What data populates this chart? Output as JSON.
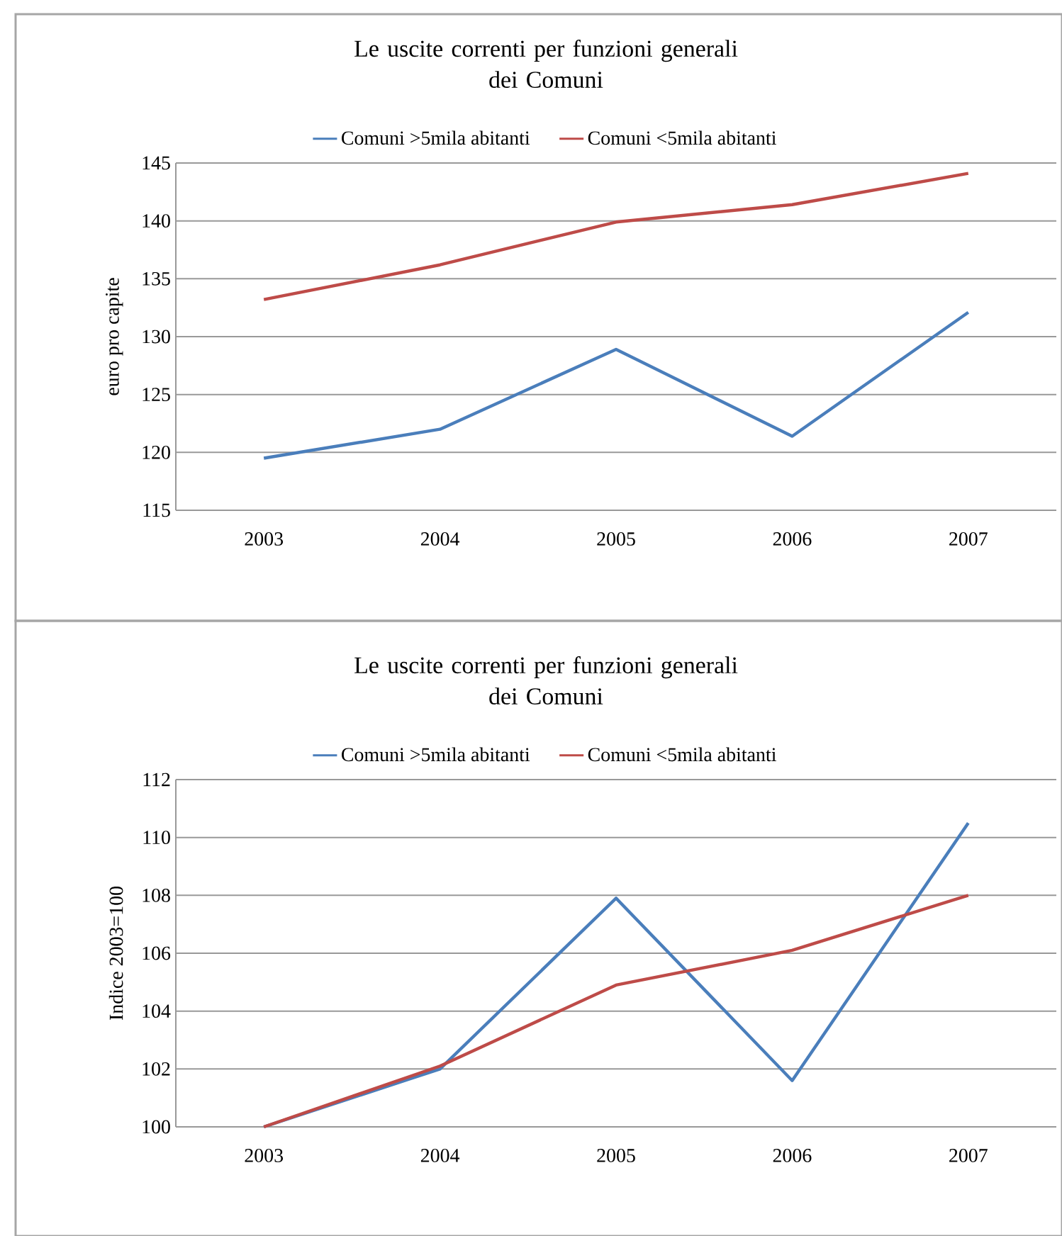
{
  "chart_data": [
    {
      "type": "line",
      "title": "Le uscite correnti per funzioni generali\ndei Comuni",
      "ylabel": "euro pro capite",
      "categories": [
        "2003",
        "2004",
        "2005",
        "2006",
        "2007"
      ],
      "ylim": [
        115,
        145
      ],
      "yticks": [
        115,
        120,
        125,
        130,
        135,
        140,
        145
      ],
      "grid": "y",
      "legend": "top",
      "marker": "none",
      "line_style": "solid",
      "series": [
        {
          "name": "Comuni >5mila abitanti",
          "color": "#4a7ebb",
          "values": [
            119.5,
            122.0,
            128.9,
            121.4,
            132.1
          ]
        },
        {
          "name": "Comuni <5mila abitanti",
          "color": "#be4b48",
          "values": [
            133.2,
            136.2,
            139.9,
            141.4,
            144.1
          ]
        }
      ]
    },
    {
      "type": "line",
      "title": "Le uscite correnti per funzioni generali\ndei Comuni",
      "ylabel": "Indice 2003=100",
      "categories": [
        "2003",
        "2004",
        "2005",
        "2006",
        "2007"
      ],
      "ylim": [
        100,
        112
      ],
      "yticks": [
        100,
        102,
        104,
        106,
        108,
        110,
        112
      ],
      "grid": "y",
      "legend": "top",
      "marker": "none",
      "line_style": "solid",
      "series": [
        {
          "name": "Comuni >5mila abitanti",
          "color": "#4a7ebb",
          "values": [
            100,
            102.0,
            107.9,
            101.6,
            110.5
          ]
        },
        {
          "name": "Comuni <5mila abitanti",
          "color": "#be4b48",
          "values": [
            100,
            102.1,
            104.9,
            106.1,
            108.0
          ]
        }
      ]
    }
  ]
}
